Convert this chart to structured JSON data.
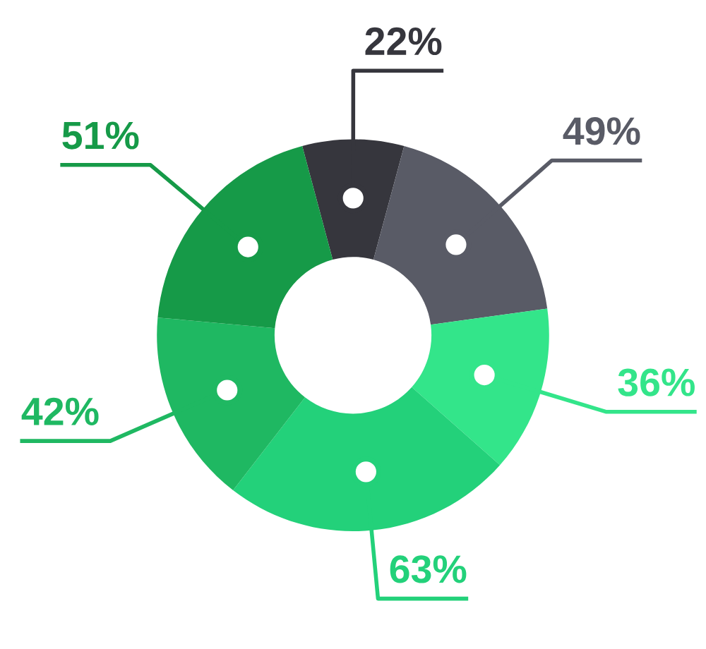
{
  "chart_data": {
    "type": "donut",
    "values": [
      22,
      49,
      36,
      63,
      42,
      51
    ],
    "colors": [
      "#36363d",
      "#595b66",
      "#33e58a",
      "#23d17a",
      "#1fb862",
      "#169a48"
    ],
    "value_labels": [
      "22%",
      "49%",
      "36%",
      "63%",
      "42%",
      "51%"
    ],
    "legend": false
  }
}
